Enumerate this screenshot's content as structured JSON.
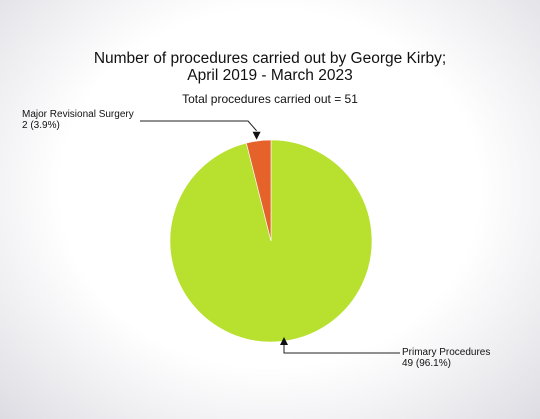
{
  "chart_data": {
    "type": "pie",
    "title_line1": "Number of procedures carried out by George Kirby;",
    "title_line2": "April 2019 - March 2023",
    "subtitle": "Total procedures carried out = 51",
    "slices": [
      {
        "name": "Primary Procedures",
        "value": 49,
        "percent_label": "49 (96.1%)",
        "color": "#b8e02e"
      },
      {
        "name": "Major Revisional Surgery",
        "value": 2,
        "percent_label": "2 (3.9%)",
        "color": "#e5632a"
      }
    ]
  }
}
